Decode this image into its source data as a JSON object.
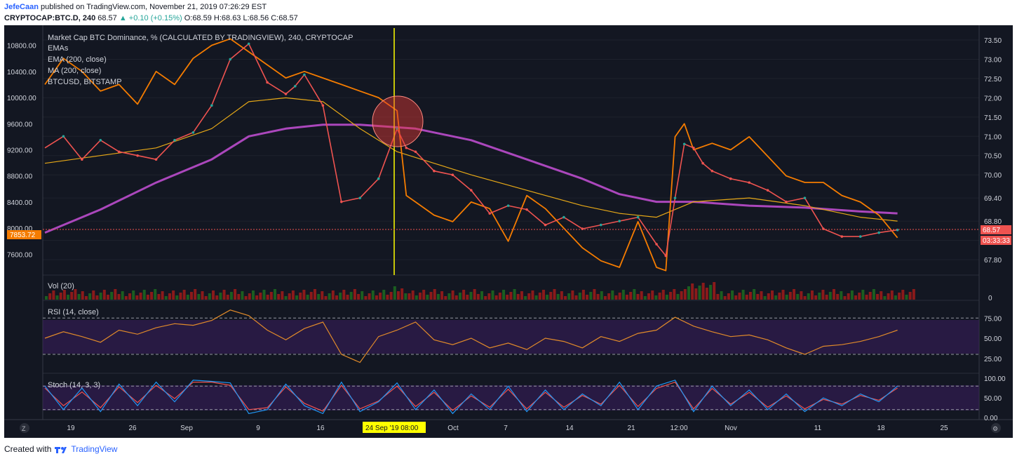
{
  "header": {
    "author": "JefeCaan",
    "published_text": "published on TradingView.com, November 21, 2019 07:26:29 EST",
    "symbol": "CRYPTOCAP:BTC.D, 240",
    "last": "68.57",
    "change": "▲ +0.10 (+0.15%)",
    "ohlc": "O:68.59 H:68.63 L:68.56 C:68.57"
  },
  "footer": {
    "created_with": "Created with",
    "brand": "TradingView"
  },
  "colors": {
    "background": "#131722",
    "dominance_up": "#26a69a",
    "dominance_down": "#ef5350",
    "btcusd": "#f57c00",
    "ma200": "#ab47bc",
    "ema200": "#e6a817",
    "ema_fast": "#ffeb3b",
    "ema_mid": "#3f51b5",
    "rsi_line": "#e08a2a",
    "stoch_k": "#2196f3",
    "stoch_d": "#ef5350",
    "highlight": "#ffff00"
  },
  "chart_data": {
    "type": "line",
    "title": "Market Cap BTC Dominance, % (CALCULATED BY TRADINGVIEW), 240, CRYPTOCAP",
    "legend": [
      "EMAs",
      "EMA (200, close)",
      "MA (200, close)",
      "BTCUSD, BITSTAMP"
    ],
    "x_ticks": [
      "19",
      "26",
      "Sep",
      "9",
      "16",
      "Oct",
      "7",
      "14",
      "21",
      "12:00",
      "Nov",
      "11",
      "18",
      "25"
    ],
    "right_axis": {
      "ticks": [
        73.5,
        73.0,
        72.5,
        72.0,
        71.5,
        71.0,
        70.5,
        70.0,
        69.4,
        68.8,
        68.3,
        67.8
      ],
      "labels": [
        "73.50",
        "73.00",
        "72.50",
        "72.00",
        "71.50",
        "71.00",
        "70.50",
        "70.00",
        "69.40",
        "68.80",
        "",
        "67.80"
      ],
      "ylim": [
        67.6,
        73.7
      ]
    },
    "left_axis": {
      "ticks": [
        10800,
        10400,
        10000,
        9600,
        9200,
        8800,
        8400,
        8000,
        7600
      ],
      "labels": [
        "10800.00",
        "10400.00",
        "10000.00",
        "9600.00",
        "9200.00",
        "8800.00",
        "8400.00",
        "8000.00",
        "7600.00"
      ],
      "ylim": [
        7400,
        11000
      ]
    },
    "current_dominance_label": "68.57",
    "countdown_label": "03:33:33",
    "current_btc_label": "7853.72",
    "crosshair_date_label": "24 Sep '19  08:00",
    "x_domain": [
      0,
      94
    ],
    "series": [
      {
        "name": "Market Cap BTC Dominance",
        "axis": "right",
        "x": [
          0,
          2,
          4,
          6,
          8,
          10,
          12,
          14,
          16,
          18,
          20,
          22,
          24,
          26,
          27,
          28,
          30,
          32,
          34,
          36,
          38,
          39,
          40,
          42,
          44,
          46,
          48,
          50,
          52,
          54,
          56,
          58,
          60,
          62,
          64,
          66,
          67,
          68,
          69,
          70,
          71,
          72,
          74,
          76,
          78,
          80,
          82,
          84,
          86,
          88,
          90,
          92
        ],
        "values": [
          70.7,
          71.0,
          70.4,
          70.9,
          70.6,
          70.5,
          70.4,
          70.9,
          71.1,
          71.8,
          73.0,
          73.4,
          72.4,
          72.1,
          72.3,
          72.6,
          71.8,
          69.3,
          69.4,
          69.9,
          71.2,
          70.7,
          70.6,
          70.1,
          70.0,
          69.6,
          69.0,
          69.2,
          69.1,
          68.7,
          68.9,
          68.6,
          68.7,
          68.8,
          68.9,
          68.2,
          67.9,
          69.4,
          70.8,
          70.7,
          70.3,
          70.1,
          69.9,
          69.8,
          69.6,
          69.3,
          69.4,
          68.6,
          68.4,
          68.4,
          68.5,
          68.57
        ]
      },
      {
        "name": "BTCUSD, BITSTAMP",
        "axis": "left",
        "x": [
          0,
          2,
          4,
          6,
          8,
          10,
          12,
          14,
          16,
          18,
          20,
          22,
          24,
          26,
          28,
          30,
          32,
          34,
          36,
          38,
          39,
          40,
          42,
          44,
          46,
          48,
          50,
          52,
          54,
          56,
          58,
          60,
          62,
          64,
          66,
          67,
          68,
          69,
          70,
          72,
          74,
          76,
          78,
          80,
          82,
          84,
          86,
          88,
          90,
          92
        ],
        "values": [
          10200,
          10600,
          10400,
          10100,
          10200,
          9900,
          10400,
          10200,
          10600,
          10800,
          10900,
          10700,
          10500,
          10300,
          10400,
          10300,
          10200,
          10100,
          10000,
          9800,
          8500,
          8400,
          8200,
          8100,
          8400,
          8300,
          7800,
          8500,
          8300,
          8000,
          7700,
          7500,
          7400,
          8100,
          7400,
          7350,
          9400,
          9600,
          9200,
          9300,
          9200,
          9400,
          9100,
          8800,
          8700,
          8700,
          8500,
          8400,
          8200,
          7853.72
        ]
      },
      {
        "name": "MA (200, close)",
        "axis": "right",
        "x": [
          0,
          6,
          12,
          18,
          22,
          26,
          30,
          34,
          40,
          46,
          52,
          58,
          62,
          66,
          70,
          76,
          82,
          88,
          92
        ],
        "values": [
          68.5,
          69.1,
          69.8,
          70.4,
          71.0,
          71.2,
          71.3,
          71.3,
          71.2,
          70.9,
          70.4,
          69.9,
          69.5,
          69.3,
          69.3,
          69.2,
          69.15,
          69.05,
          69.0
        ]
      },
      {
        "name": "EMA (200, close)",
        "axis": "right",
        "x": [
          0,
          6,
          12,
          18,
          22,
          26,
          30,
          34,
          38,
          42,
          46,
          52,
          58,
          62,
          66,
          70,
          76,
          82,
          88,
          92
        ],
        "values": [
          70.3,
          70.5,
          70.7,
          71.2,
          71.9,
          72.0,
          71.9,
          71.2,
          70.6,
          70.3,
          70.0,
          69.6,
          69.2,
          69.0,
          68.9,
          69.3,
          69.4,
          69.2,
          68.9,
          68.8
        ]
      }
    ],
    "volume": {
      "name": "Vol (20)",
      "axis_label": "0"
    },
    "rsi": {
      "name": "RSI (14, close)",
      "ticks": [
        75.0,
        50.0,
        25.0
      ],
      "labels": [
        "75.00",
        "50.00",
        "25.00"
      ],
      "bands": [
        30,
        70
      ],
      "ylim": [
        10,
        90
      ],
      "x": [
        0,
        2,
        4,
        6,
        8,
        10,
        12,
        14,
        16,
        18,
        20,
        22,
        24,
        26,
        28,
        30,
        32,
        34,
        36,
        38,
        40,
        42,
        44,
        46,
        48,
        50,
        52,
        54,
        56,
        58,
        60,
        62,
        64,
        66,
        68,
        70,
        72,
        74,
        76,
        78,
        80,
        82,
        84,
        86,
        88,
        90,
        92
      ],
      "values": [
        50,
        58,
        52,
        45,
        60,
        55,
        63,
        68,
        66,
        72,
        85,
        78,
        60,
        48,
        62,
        70,
        30,
        20,
        52,
        60,
        70,
        48,
        42,
        50,
        38,
        44,
        36,
        50,
        46,
        38,
        52,
        46,
        56,
        60,
        76,
        65,
        58,
        52,
        54,
        48,
        38,
        30,
        40,
        42,
        46,
        52,
        60
      ]
    },
    "stoch": {
      "name": "Stoch (14, 3, 3)",
      "ticks": [
        100.0,
        50.0,
        0.0
      ],
      "labels": [
        "100.00",
        "50.00",
        "0.00"
      ],
      "bands": [
        20,
        80
      ],
      "ylim": [
        0,
        100
      ],
      "x": [
        0,
        2,
        4,
        6,
        8,
        10,
        12,
        14,
        16,
        18,
        20,
        22,
        24,
        26,
        28,
        30,
        32,
        34,
        36,
        38,
        40,
        42,
        44,
        46,
        48,
        50,
        52,
        54,
        56,
        58,
        60,
        62,
        64,
        66,
        68,
        70,
        72,
        74,
        76,
        78,
        80,
        82,
        84,
        86,
        88,
        90,
        92
      ],
      "k": [
        80,
        20,
        75,
        15,
        85,
        30,
        90,
        40,
        95,
        92,
        88,
        10,
        20,
        85,
        30,
        10,
        90,
        15,
        40,
        88,
        20,
        70,
        10,
        60,
        20,
        80,
        15,
        70,
        20,
        60,
        30,
        90,
        20,
        80,
        95,
        15,
        80,
        30,
        70,
        20,
        60,
        15,
        50,
        30,
        60,
        40,
        80
      ],
      "d": [
        75,
        30,
        65,
        25,
        78,
        38,
        82,
        48,
        90,
        90,
        82,
        20,
        25,
        78,
        36,
        16,
        82,
        22,
        42,
        80,
        28,
        64,
        18,
        55,
        26,
        72,
        22,
        64,
        26,
        56,
        34,
        82,
        28,
        74,
        90,
        22,
        74,
        34,
        64,
        26,
        55,
        22,
        46,
        34,
        56,
        44,
        75
      ]
    }
  }
}
